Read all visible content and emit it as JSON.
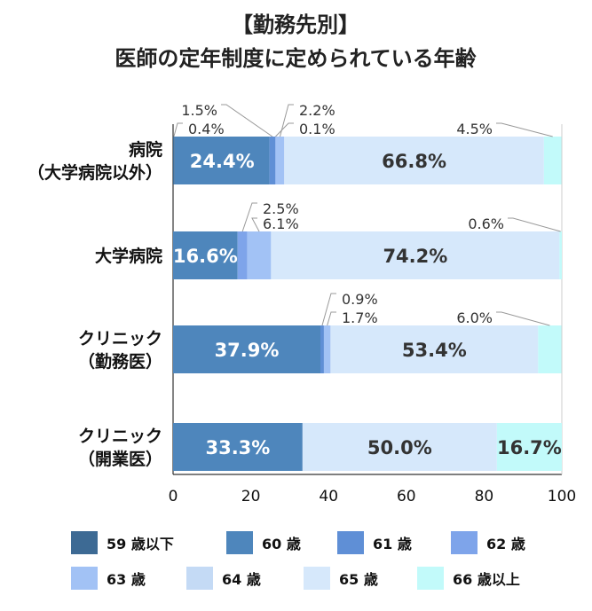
{
  "chart_data": {
    "type": "bar",
    "orientation": "horizontal",
    "stacked": true,
    "title": [
      "【勤務先別】",
      "医師の定年制度に定められている年齢"
    ],
    "categories": [
      [
        "病院",
        "（大学病院以外）"
      ],
      [
        "大学病院"
      ],
      [
        "クリニック",
        "（勤務医）"
      ],
      [
        "クリニック",
        "（開業医）"
      ]
    ],
    "xlim": [
      0,
      100
    ],
    "xticks": [
      "0",
      "20",
      "40",
      "60",
      "80",
      "100"
    ],
    "legend_position": "bottom",
    "series": [
      {
        "name": "59 歳以下",
        "color": "#3d6a94",
        "values": [
          0.4,
          0,
          0,
          0
        ],
        "labels": [
          "0.4%",
          "",
          "",
          ""
        ]
      },
      {
        "name": "60 歳",
        "color": "#4e86bc",
        "values": [
          24.4,
          16.6,
          37.9,
          33.3
        ],
        "labels": [
          "24.4%",
          "16.6%",
          "37.9%",
          "33.3%"
        ]
      },
      {
        "name": "61 歳",
        "color": "#5f8fd6",
        "values": [
          1.5,
          0,
          0.9,
          0
        ],
        "labels": [
          "1.5%",
          "",
          "0.9%",
          ""
        ]
      },
      {
        "name": "62 歳",
        "color": "#7ea4ea",
        "values": [
          0.1,
          2.5,
          0,
          0
        ],
        "labels": [
          "0.1%",
          "2.5%",
          "",
          ""
        ]
      },
      {
        "name": "63 歳",
        "color": "#a2c2f5",
        "values": [
          2.2,
          6.1,
          1.7,
          0
        ],
        "labels": [
          "2.2%",
          "6.1%",
          "1.7%",
          ""
        ]
      },
      {
        "name": "64 歳",
        "color": "#c4daf5",
        "values": [
          0,
          0,
          0,
          0
        ],
        "labels": [
          "",
          "",
          "",
          ""
        ]
      },
      {
        "name": "65 歳",
        "color": "#d6e8fb",
        "values": [
          66.8,
          74.2,
          53.4,
          50.0
        ],
        "labels": [
          "66.8%",
          "74.2%",
          "53.4%",
          "50.0%"
        ]
      },
      {
        "name": "66 歳以上",
        "color": "#c2fafa",
        "values": [
          4.5,
          0.6,
          6.0,
          16.7
        ],
        "labels": [
          "4.5%",
          "0.6%",
          "6.0%",
          "16.7%"
        ]
      }
    ]
  }
}
